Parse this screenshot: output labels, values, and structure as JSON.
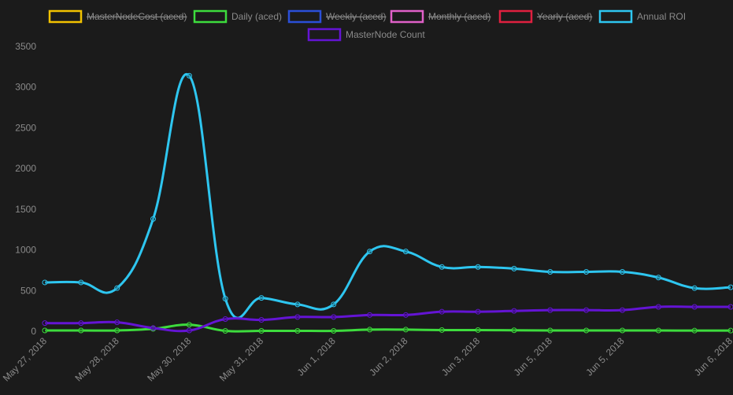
{
  "chart_data": {
    "type": "line",
    "categories": [
      "May 27, 2018",
      null,
      "May 28, 2018",
      null,
      "May 30, 2018",
      null,
      "May 31, 2018",
      null,
      "Jun 1, 2018",
      null,
      "Jun 2, 2018",
      null,
      "Jun 3, 2018",
      null,
      "Jun 5, 2018",
      null,
      "Jun 5, 2018",
      null,
      null,
      "Jun 6, 2018"
    ],
    "series": [
      {
        "name": "MasterNodeCost (aced)",
        "color": "#f2c200",
        "hidden": true
      },
      {
        "name": "Daily (aced)",
        "color": "#3ddc3d",
        "values": [
          10,
          10,
          10,
          30,
          80,
          5,
          5,
          5,
          5,
          20,
          20,
          15,
          15,
          12,
          10,
          10,
          10,
          10,
          8,
          8
        ]
      },
      {
        "name": "Weekly (aced)",
        "color": "#2b4fd8",
        "hidden": true
      },
      {
        "name": "Monthly (aced)",
        "color": "#e060c8",
        "hidden": true
      },
      {
        "name": "Yearly (aced)",
        "color": "#e0203f",
        "hidden": true
      },
      {
        "name": "Annual ROI",
        "color": "#2ec6f0",
        "values": [
          600,
          600,
          530,
          1380,
          3140,
          400,
          410,
          330,
          330,
          980,
          980,
          790,
          790,
          770,
          730,
          730,
          730,
          660,
          530,
          540
        ]
      },
      {
        "name": "MasterNode Count",
        "color": "#6414d4",
        "values": [
          100,
          100,
          110,
          40,
          10,
          150,
          140,
          175,
          175,
          200,
          200,
          240,
          240,
          250,
          260,
          260,
          260,
          300,
          300,
          300
        ]
      }
    ],
    "ylim": [
      0,
      3500
    ],
    "yticks": [
      0,
      500,
      1000,
      1500,
      2000,
      2500,
      3000,
      3500
    ],
    "grid": false,
    "legend": "top"
  }
}
